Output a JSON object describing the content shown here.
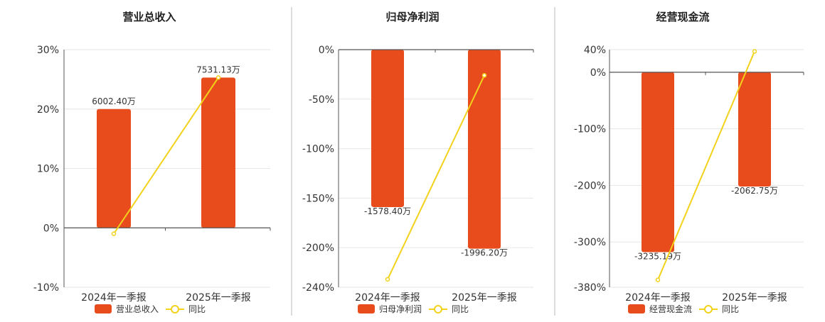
{
  "colors": {
    "bar": "#E84C1C",
    "line": "#F2D21B",
    "grid": "#E6E6E6",
    "axis": "#555555",
    "divider": "#BBBBBB",
    "text": "#333333"
  },
  "chart_data": [
    {
      "type": "bar",
      "title": "营业总收入",
      "categories": [
        "2024年一季报",
        "2025年一季报"
      ],
      "series": [
        {
          "name": "营业总收入",
          "type": "bar",
          "axis": "left",
          "values": [
            20.0,
            25.3
          ],
          "labels": [
            "6002.40万",
            "7531.13万"
          ]
        },
        {
          "name": "同比",
          "type": "line",
          "axis": "left",
          "values": [
            -1.0,
            25.3
          ]
        }
      ],
      "yticks": [
        30,
        20,
        10,
        0,
        -10
      ],
      "ytick_labels": [
        "30%",
        "20%",
        "10%",
        "0%",
        "-10%"
      ],
      "ylim": [
        -10,
        30
      ],
      "grid": true,
      "legend": "bottom"
    },
    {
      "type": "bar",
      "title": "归母净利润",
      "categories": [
        "2024年一季报",
        "2025年一季报"
      ],
      "series": [
        {
          "name": "归母净利润",
          "type": "bar",
          "axis": "left",
          "values": [
            -159,
            -201
          ],
          "labels": [
            "-1578.40万",
            "-1996.20万"
          ]
        },
        {
          "name": "同比",
          "type": "line",
          "axis": "left",
          "values": [
            -232,
            -26
          ]
        }
      ],
      "yticks": [
        0,
        -50,
        -100,
        -150,
        -200,
        -240
      ],
      "ytick_labels": [
        "0%",
        "-50%",
        "-100%",
        "-150%",
        "-200%",
        "-240%"
      ],
      "ylim": [
        -240,
        0
      ],
      "grid": true,
      "legend": "bottom"
    },
    {
      "type": "bar",
      "title": "经营现金流",
      "categories": [
        "2024年一季报",
        "2025年一季报"
      ],
      "series": [
        {
          "name": "经营现金流",
          "type": "bar",
          "axis": "left",
          "values": [
            -318,
            -202
          ],
          "labels": [
            "-3235.19万",
            "-2062.75万"
          ]
        },
        {
          "name": "同比",
          "type": "line",
          "axis": "left",
          "values": [
            -367,
            37
          ]
        }
      ],
      "yticks": [
        40,
        0,
        -100,
        -200,
        -300,
        -380
      ],
      "ytick_labels": [
        "40%",
        "0%",
        "-100%",
        "-200%",
        "-300%",
        "-380%"
      ],
      "ylim": [
        -380,
        40
      ],
      "grid": true,
      "legend": "bottom"
    }
  ]
}
